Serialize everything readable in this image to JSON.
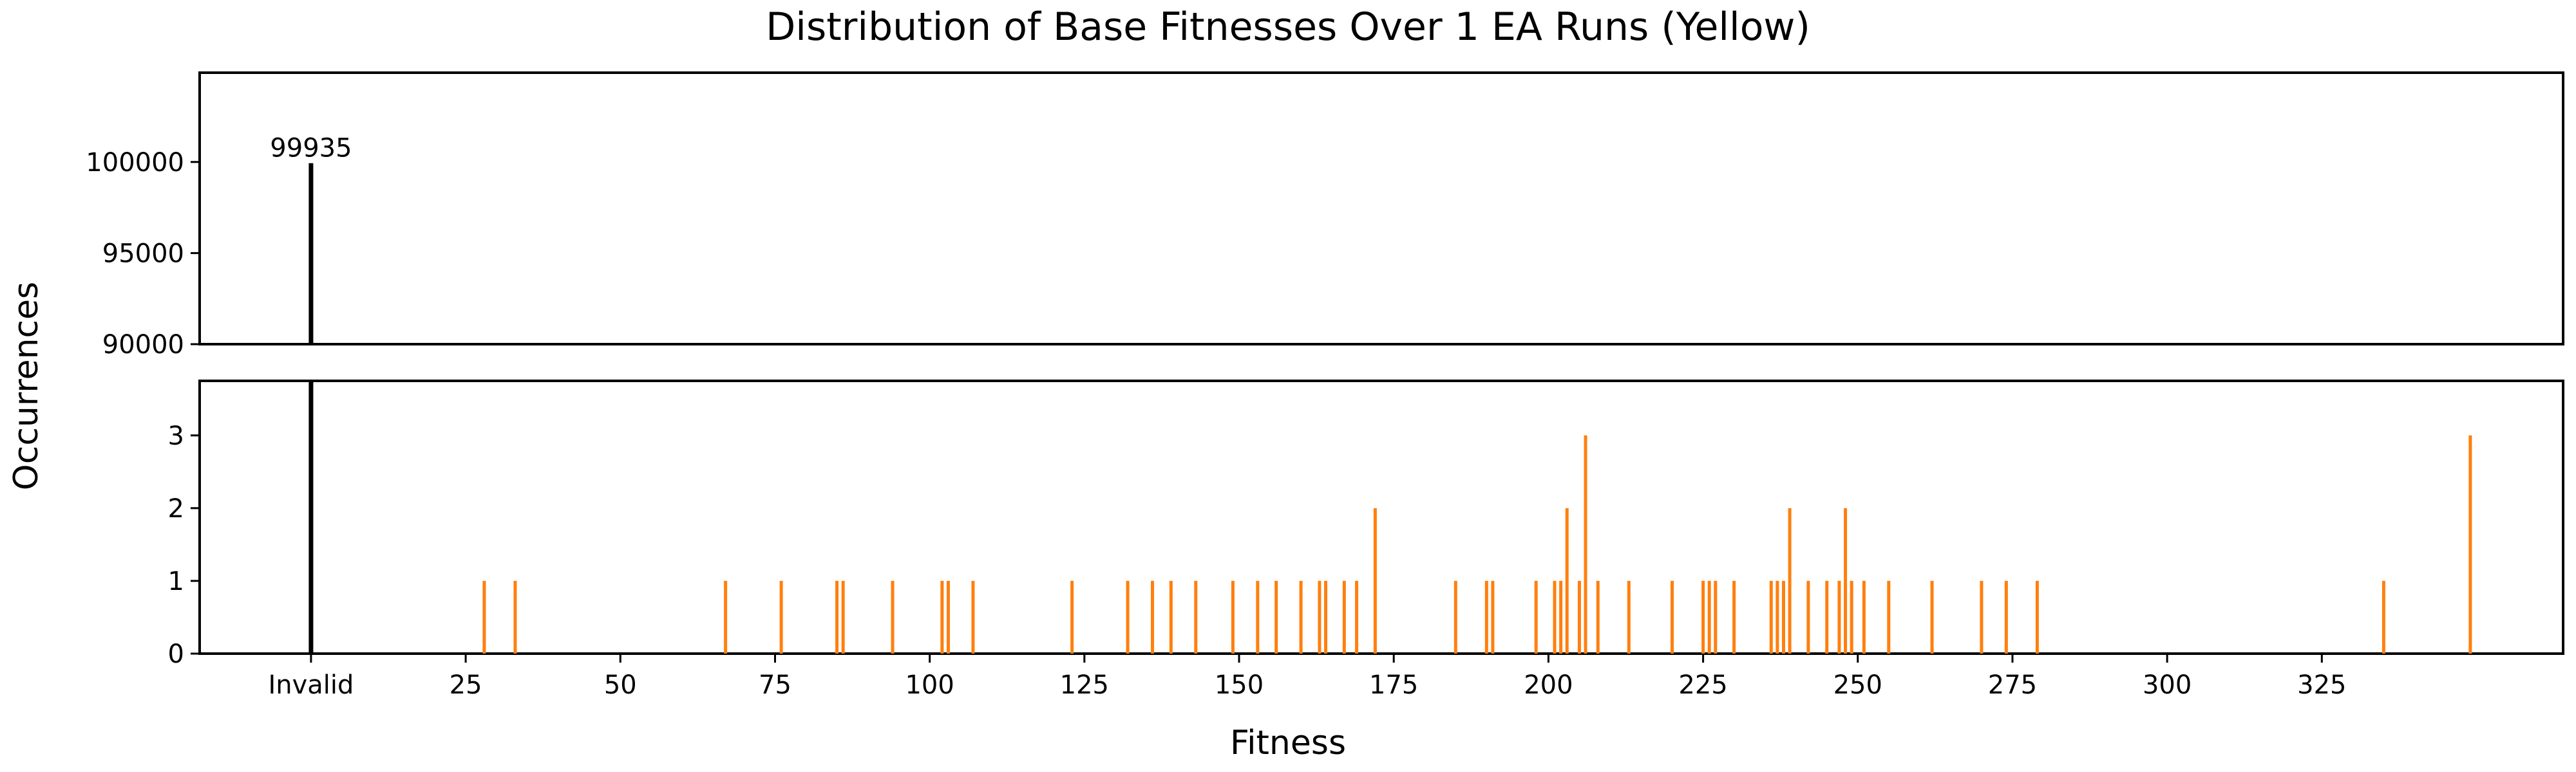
{
  "chart_data": {
    "type": "bar",
    "title": "Distribution of Base Fitnesses Over 1 EA Runs (Yellow)",
    "xlabel": "Fitness",
    "ylabel": "Occurrences",
    "x_tick_labels": [
      "Invalid",
      "25",
      "50",
      "75",
      "100",
      "125",
      "150",
      "175",
      "200",
      "225",
      "250",
      "275",
      "300",
      "325"
    ],
    "xlim": [
      -18,
      364
    ],
    "broken_y_axis": true,
    "top_panel": {
      "ylim": [
        90000,
        104900
      ],
      "y_ticks": [
        90000,
        95000,
        100000
      ]
    },
    "bottom_panel": {
      "ylim": [
        0,
        3.75
      ],
      "y_ticks": [
        0,
        1,
        2,
        3
      ]
    },
    "invalid": {
      "label": "Invalid",
      "value": 99935,
      "annotation": "99935",
      "color": "#000000"
    },
    "series_color": "#ff7f0e",
    "x": [
      28,
      33,
      67,
      76,
      85,
      86,
      94,
      102,
      103,
      107,
      123,
      132,
      136,
      139,
      143,
      149,
      153,
      156,
      160,
      163,
      164,
      167,
      169,
      172,
      185,
      190,
      191,
      198,
      201,
      202,
      203,
      205,
      206,
      208,
      213,
      220,
      225,
      226,
      227,
      230,
      236,
      237,
      238,
      239,
      242,
      245,
      247,
      248,
      249,
      251,
      255,
      262,
      270,
      274,
      279,
      335,
      349
    ],
    "values": [
      1,
      1,
      1,
      1,
      1,
      1,
      1,
      1,
      1,
      1,
      1,
      1,
      1,
      1,
      1,
      1,
      1,
      1,
      1,
      1,
      1,
      1,
      1,
      2,
      1,
      1,
      1,
      1,
      1,
      1,
      2,
      1,
      3,
      1,
      1,
      1,
      1,
      1,
      1,
      1,
      1,
      1,
      1,
      2,
      1,
      1,
      1,
      2,
      1,
      1,
      1,
      1,
      1,
      1,
      1,
      1,
      3
    ]
  }
}
